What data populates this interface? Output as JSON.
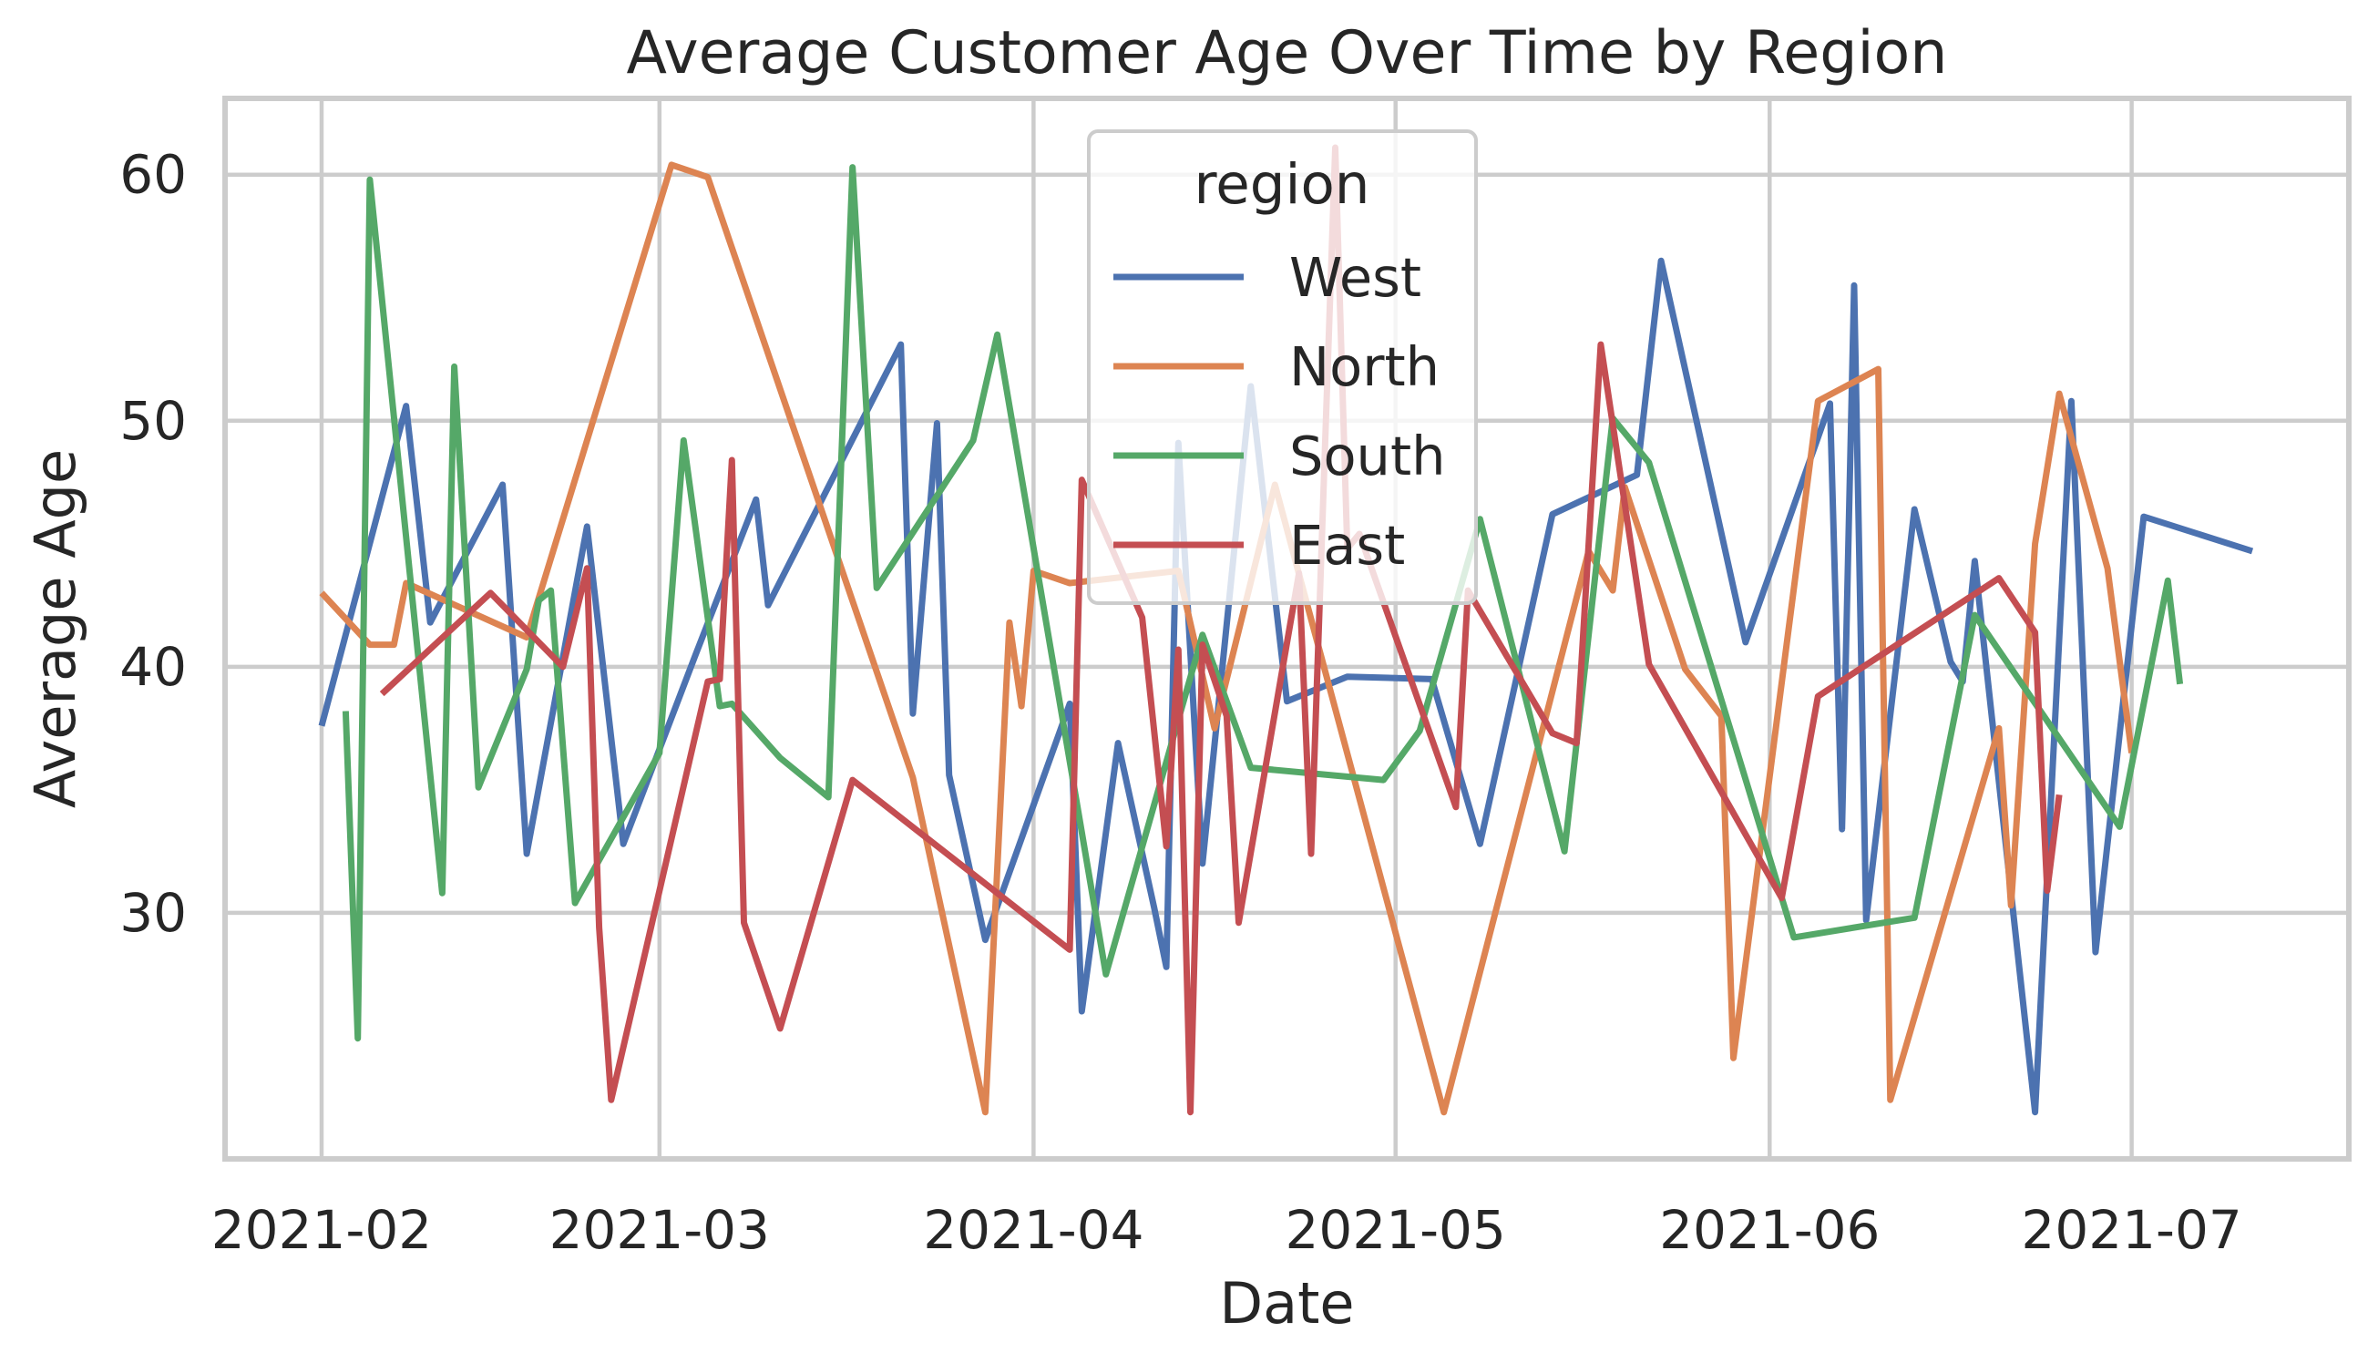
{
  "chart_data": {
    "type": "line",
    "title": "Average Customer Age Over Time by Region",
    "xlabel": "Date",
    "ylabel": "Average Age",
    "x_ticks": [
      {
        "date": "2021-02-01",
        "label": "2021-02"
      },
      {
        "date": "2021-03-01",
        "label": "2021-03"
      },
      {
        "date": "2021-04-01",
        "label": "2021-04"
      },
      {
        "date": "2021-05-01",
        "label": "2021-05"
      },
      {
        "date": "2021-06-01",
        "label": "2021-06"
      },
      {
        "date": "2021-07-01",
        "label": "2021-07"
      }
    ],
    "xlim": [
      "2021-01-24",
      "2021-07-19"
    ],
    "y_ticks": [
      30,
      40,
      50,
      60
    ],
    "ylim": [
      20,
      63.1
    ],
    "grid": true,
    "legend": {
      "title": "region",
      "placement": "upper center"
    },
    "series": [
      {
        "name": "West",
        "color": "#4c72b0",
        "points": [
          [
            "2021-02-01",
            37.6
          ],
          [
            "2021-02-08",
            50.6
          ],
          [
            "2021-02-10",
            41.8
          ],
          [
            "2021-02-16",
            47.4
          ],
          [
            "2021-02-18",
            32.4
          ],
          [
            "2021-02-23",
            45.7
          ],
          [
            "2021-02-26",
            32.8
          ],
          [
            "2021-03-04",
            40.5
          ],
          [
            "2021-03-09",
            46.8
          ],
          [
            "2021-03-10",
            42.5
          ],
          [
            "2021-03-21",
            53.1
          ],
          [
            "2021-03-22",
            38.1
          ],
          [
            "2021-03-24",
            49.9
          ],
          [
            "2021-03-25",
            35.6
          ],
          [
            "2021-03-28",
            28.9
          ],
          [
            "2021-04-04",
            38.5
          ],
          [
            "2021-04-05",
            26.0
          ],
          [
            "2021-04-08",
            36.9
          ],
          [
            "2021-04-11",
            30.2
          ],
          [
            "2021-04-12",
            27.8
          ],
          [
            "2021-04-13",
            49.1
          ],
          [
            "2021-04-15",
            32.0
          ],
          [
            "2021-04-19",
            51.4
          ],
          [
            "2021-04-22",
            38.6
          ],
          [
            "2021-04-27",
            39.6
          ],
          [
            "2021-05-04",
            39.5
          ],
          [
            "2021-05-08",
            32.8
          ],
          [
            "2021-05-14",
            46.2
          ],
          [
            "2021-05-21",
            47.8
          ],
          [
            "2021-05-23",
            56.5
          ],
          [
            "2021-05-30",
            41.0
          ],
          [
            "2021-06-06",
            50.7
          ],
          [
            "2021-06-07",
            33.4
          ],
          [
            "2021-06-08",
            55.5
          ],
          [
            "2021-06-09",
            29.7
          ],
          [
            "2021-06-13",
            46.4
          ],
          [
            "2021-06-16",
            40.2
          ],
          [
            "2021-06-17",
            39.4
          ],
          [
            "2021-06-18",
            44.3
          ],
          [
            "2021-06-23",
            21.9
          ],
          [
            "2021-06-26",
            50.8
          ],
          [
            "2021-06-28",
            28.4
          ],
          [
            "2021-07-02",
            46.1
          ],
          [
            "2021-07-11",
            44.7
          ]
        ]
      },
      {
        "name": "North",
        "color": "#dd8452",
        "points": [
          [
            "2021-02-01",
            43.0
          ],
          [
            "2021-02-05",
            40.9
          ],
          [
            "2021-02-07",
            40.9
          ],
          [
            "2021-02-08",
            43.4
          ],
          [
            "2021-02-18",
            41.2
          ],
          [
            "2021-03-02",
            60.4
          ],
          [
            "2021-03-05",
            59.9
          ],
          [
            "2021-03-22",
            35.5
          ],
          [
            "2021-03-28",
            21.9
          ],
          [
            "2021-03-30",
            41.8
          ],
          [
            "2021-03-31",
            38.4
          ],
          [
            "2021-04-01",
            43.9
          ],
          [
            "2021-04-04",
            43.4
          ],
          [
            "2021-04-13",
            43.9
          ],
          [
            "2021-04-16",
            37.5
          ],
          [
            "2021-04-21",
            47.4
          ],
          [
            "2021-05-05",
            21.9
          ],
          [
            "2021-05-17",
            44.7
          ],
          [
            "2021-05-19",
            43.1
          ],
          [
            "2021-05-20",
            47.3
          ],
          [
            "2021-05-25",
            39.9
          ],
          [
            "2021-05-28",
            38.0
          ],
          [
            "2021-05-29",
            24.1
          ],
          [
            "2021-06-05",
            50.8
          ],
          [
            "2021-06-10",
            52.1
          ],
          [
            "2021-06-11",
            22.4
          ],
          [
            "2021-06-20",
            37.5
          ],
          [
            "2021-06-21",
            30.3
          ],
          [
            "2021-06-23",
            45.0
          ],
          [
            "2021-06-25",
            51.1
          ],
          [
            "2021-06-29",
            44.0
          ],
          [
            "2021-07-01",
            36.5
          ]
        ]
      },
      {
        "name": "South",
        "color": "#55a868",
        "points": [
          [
            "2021-02-03",
            38.2
          ],
          [
            "2021-02-04",
            24.9
          ],
          [
            "2021-02-05",
            59.8
          ],
          [
            "2021-02-11",
            30.8
          ],
          [
            "2021-02-12",
            52.2
          ],
          [
            "2021-02-14",
            35.1
          ],
          [
            "2021-02-18",
            39.9
          ],
          [
            "2021-02-19",
            42.7
          ],
          [
            "2021-02-20",
            43.1
          ],
          [
            "2021-02-22",
            30.4
          ],
          [
            "2021-03-01",
            36.5
          ],
          [
            "2021-03-03",
            49.2
          ],
          [
            "2021-03-06",
            38.4
          ],
          [
            "2021-03-07",
            38.5
          ],
          [
            "2021-03-11",
            36.3
          ],
          [
            "2021-03-15",
            34.7
          ],
          [
            "2021-03-17",
            60.3
          ],
          [
            "2021-03-19",
            43.2
          ],
          [
            "2021-03-27",
            49.2
          ],
          [
            "2021-03-29",
            53.5
          ],
          [
            "2021-04-07",
            27.5
          ],
          [
            "2021-04-15",
            41.3
          ],
          [
            "2021-04-19",
            35.9
          ],
          [
            "2021-04-30",
            35.4
          ],
          [
            "2021-05-03",
            37.4
          ],
          [
            "2021-05-08",
            46.0
          ],
          [
            "2021-05-15",
            32.5
          ],
          [
            "2021-05-19",
            50.1
          ],
          [
            "2021-05-22",
            48.3
          ],
          [
            "2021-06-03",
            29.0
          ],
          [
            "2021-06-13",
            29.8
          ],
          [
            "2021-06-18",
            42.1
          ],
          [
            "2021-06-30",
            33.5
          ],
          [
            "2021-07-04",
            43.5
          ],
          [
            "2021-07-05",
            39.3
          ]
        ]
      },
      {
        "name": "East",
        "color": "#c44e52",
        "points": [
          [
            "2021-02-06",
            38.9
          ],
          [
            "2021-02-15",
            43.0
          ],
          [
            "2021-02-21",
            40.0
          ],
          [
            "2021-02-23",
            44.0
          ],
          [
            "2021-02-24",
            29.4
          ],
          [
            "2021-02-25",
            22.4
          ],
          [
            "2021-03-05",
            39.4
          ],
          [
            "2021-03-06",
            39.5
          ],
          [
            "2021-03-07",
            48.4
          ],
          [
            "2021-03-08",
            29.6
          ],
          [
            "2021-03-11",
            25.3
          ],
          [
            "2021-03-17",
            35.4
          ],
          [
            "2021-04-04",
            28.5
          ],
          [
            "2021-04-05",
            47.6
          ],
          [
            "2021-04-10",
            42.0
          ],
          [
            "2021-04-12",
            32.7
          ],
          [
            "2021-04-13",
            40.7
          ],
          [
            "2021-04-14",
            21.9
          ],
          [
            "2021-04-15",
            40.9
          ],
          [
            "2021-04-17",
            38.0
          ],
          [
            "2021-04-18",
            29.6
          ],
          [
            "2021-04-23",
            43.8
          ],
          [
            "2021-04-24",
            32.4
          ],
          [
            "2021-04-26",
            61.1
          ],
          [
            "2021-04-27",
            44.8
          ],
          [
            "2021-04-28",
            45.4
          ],
          [
            "2021-05-06",
            34.3
          ],
          [
            "2021-05-07",
            43.1
          ],
          [
            "2021-05-14",
            37.3
          ],
          [
            "2021-05-16",
            36.9
          ],
          [
            "2021-05-18",
            53.1
          ],
          [
            "2021-05-22",
            40.1
          ],
          [
            "2021-06-02",
            30.6
          ],
          [
            "2021-06-05",
            38.8
          ],
          [
            "2021-06-20",
            43.6
          ],
          [
            "2021-06-23",
            41.4
          ],
          [
            "2021-06-24",
            30.9
          ],
          [
            "2021-06-25",
            34.8
          ]
        ]
      }
    ]
  }
}
